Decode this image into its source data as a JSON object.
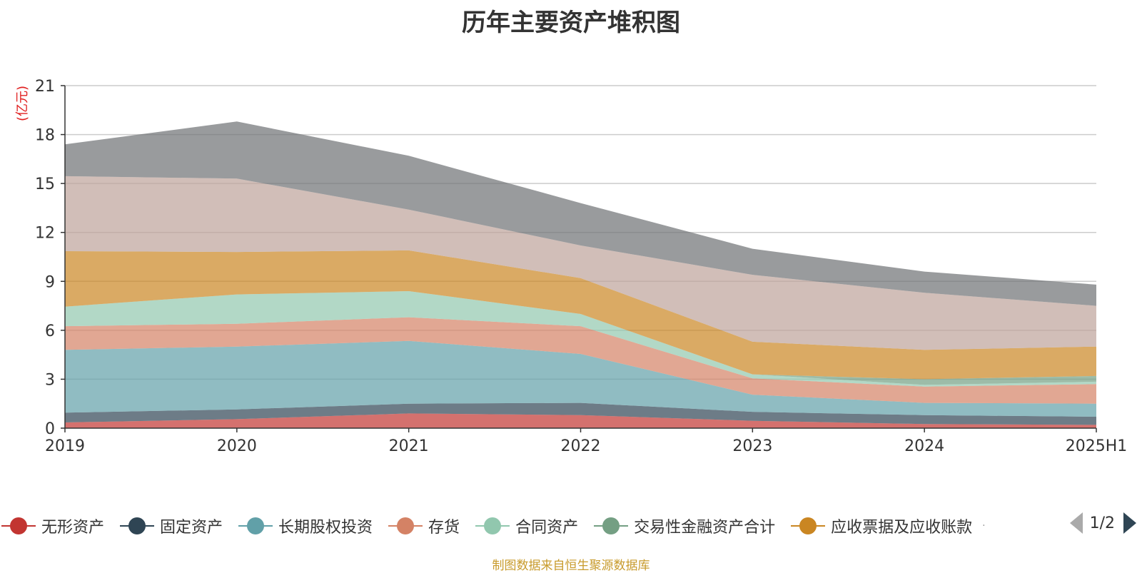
{
  "title": "历年主要资产堆积图",
  "unit": "(亿元)",
  "source": "制图数据来自恒生聚源数据库",
  "pager": "1/2",
  "chart_data": {
    "type": "area",
    "stacked": true,
    "x": [
      "2019",
      "2020",
      "2021",
      "2022",
      "2023",
      "2024",
      "2025H1"
    ],
    "ylim": [
      0,
      21
    ],
    "yticks": [
      0,
      3,
      6,
      9,
      12,
      15,
      18,
      21
    ],
    "grid": true,
    "legend_position": "bottom",
    "series": [
      {
        "name": "无形资产",
        "color": "#c23531",
        "values": [
          0.35,
          0.55,
          0.9,
          0.8,
          0.45,
          0.25,
          0.2
        ],
        "in_legend": true
      },
      {
        "name": "固定资产",
        "color": "#2f4554",
        "values": [
          0.6,
          0.6,
          0.6,
          0.75,
          0.55,
          0.55,
          0.5
        ],
        "in_legend": true
      },
      {
        "name": "长期股权投资",
        "color": "#61a0a8",
        "values": [
          3.85,
          3.85,
          3.85,
          3.0,
          1.05,
          0.75,
          0.8
        ],
        "in_legend": true
      },
      {
        "name": "存货",
        "color": "#d48265",
        "values": [
          1.45,
          1.4,
          1.45,
          1.7,
          1.0,
          1.0,
          1.2
        ],
        "in_legend": true
      },
      {
        "name": "合同资产",
        "color": "#91c7ae",
        "values": [
          1.2,
          1.8,
          1.6,
          0.75,
          0.25,
          0.1,
          0.15
        ],
        "in_legend": true
      },
      {
        "name": "交易性金融资产合计",
        "color": "#749f83",
        "values": [
          0,
          0,
          0,
          0,
          0,
          0.35,
          0.35
        ],
        "in_legend": true
      },
      {
        "name": "应收票据及应收账款",
        "color": "#ca8622",
        "values": [
          3.4,
          2.6,
          2.5,
          2.2,
          2.0,
          1.8,
          1.8
        ],
        "in_legend": true
      },
      {
        "name": "",
        "color": "#bda29a",
        "values": [
          4.6,
          4.5,
          2.5,
          2.0,
          4.1,
          3.5,
          2.5
        ],
        "in_legend": false
      },
      {
        "name": "",
        "color": "#6e7074",
        "values": [
          1.95,
          3.5,
          3.3,
          2.6,
          1.6,
          1.3,
          1.3
        ],
        "in_legend": false
      }
    ]
  }
}
